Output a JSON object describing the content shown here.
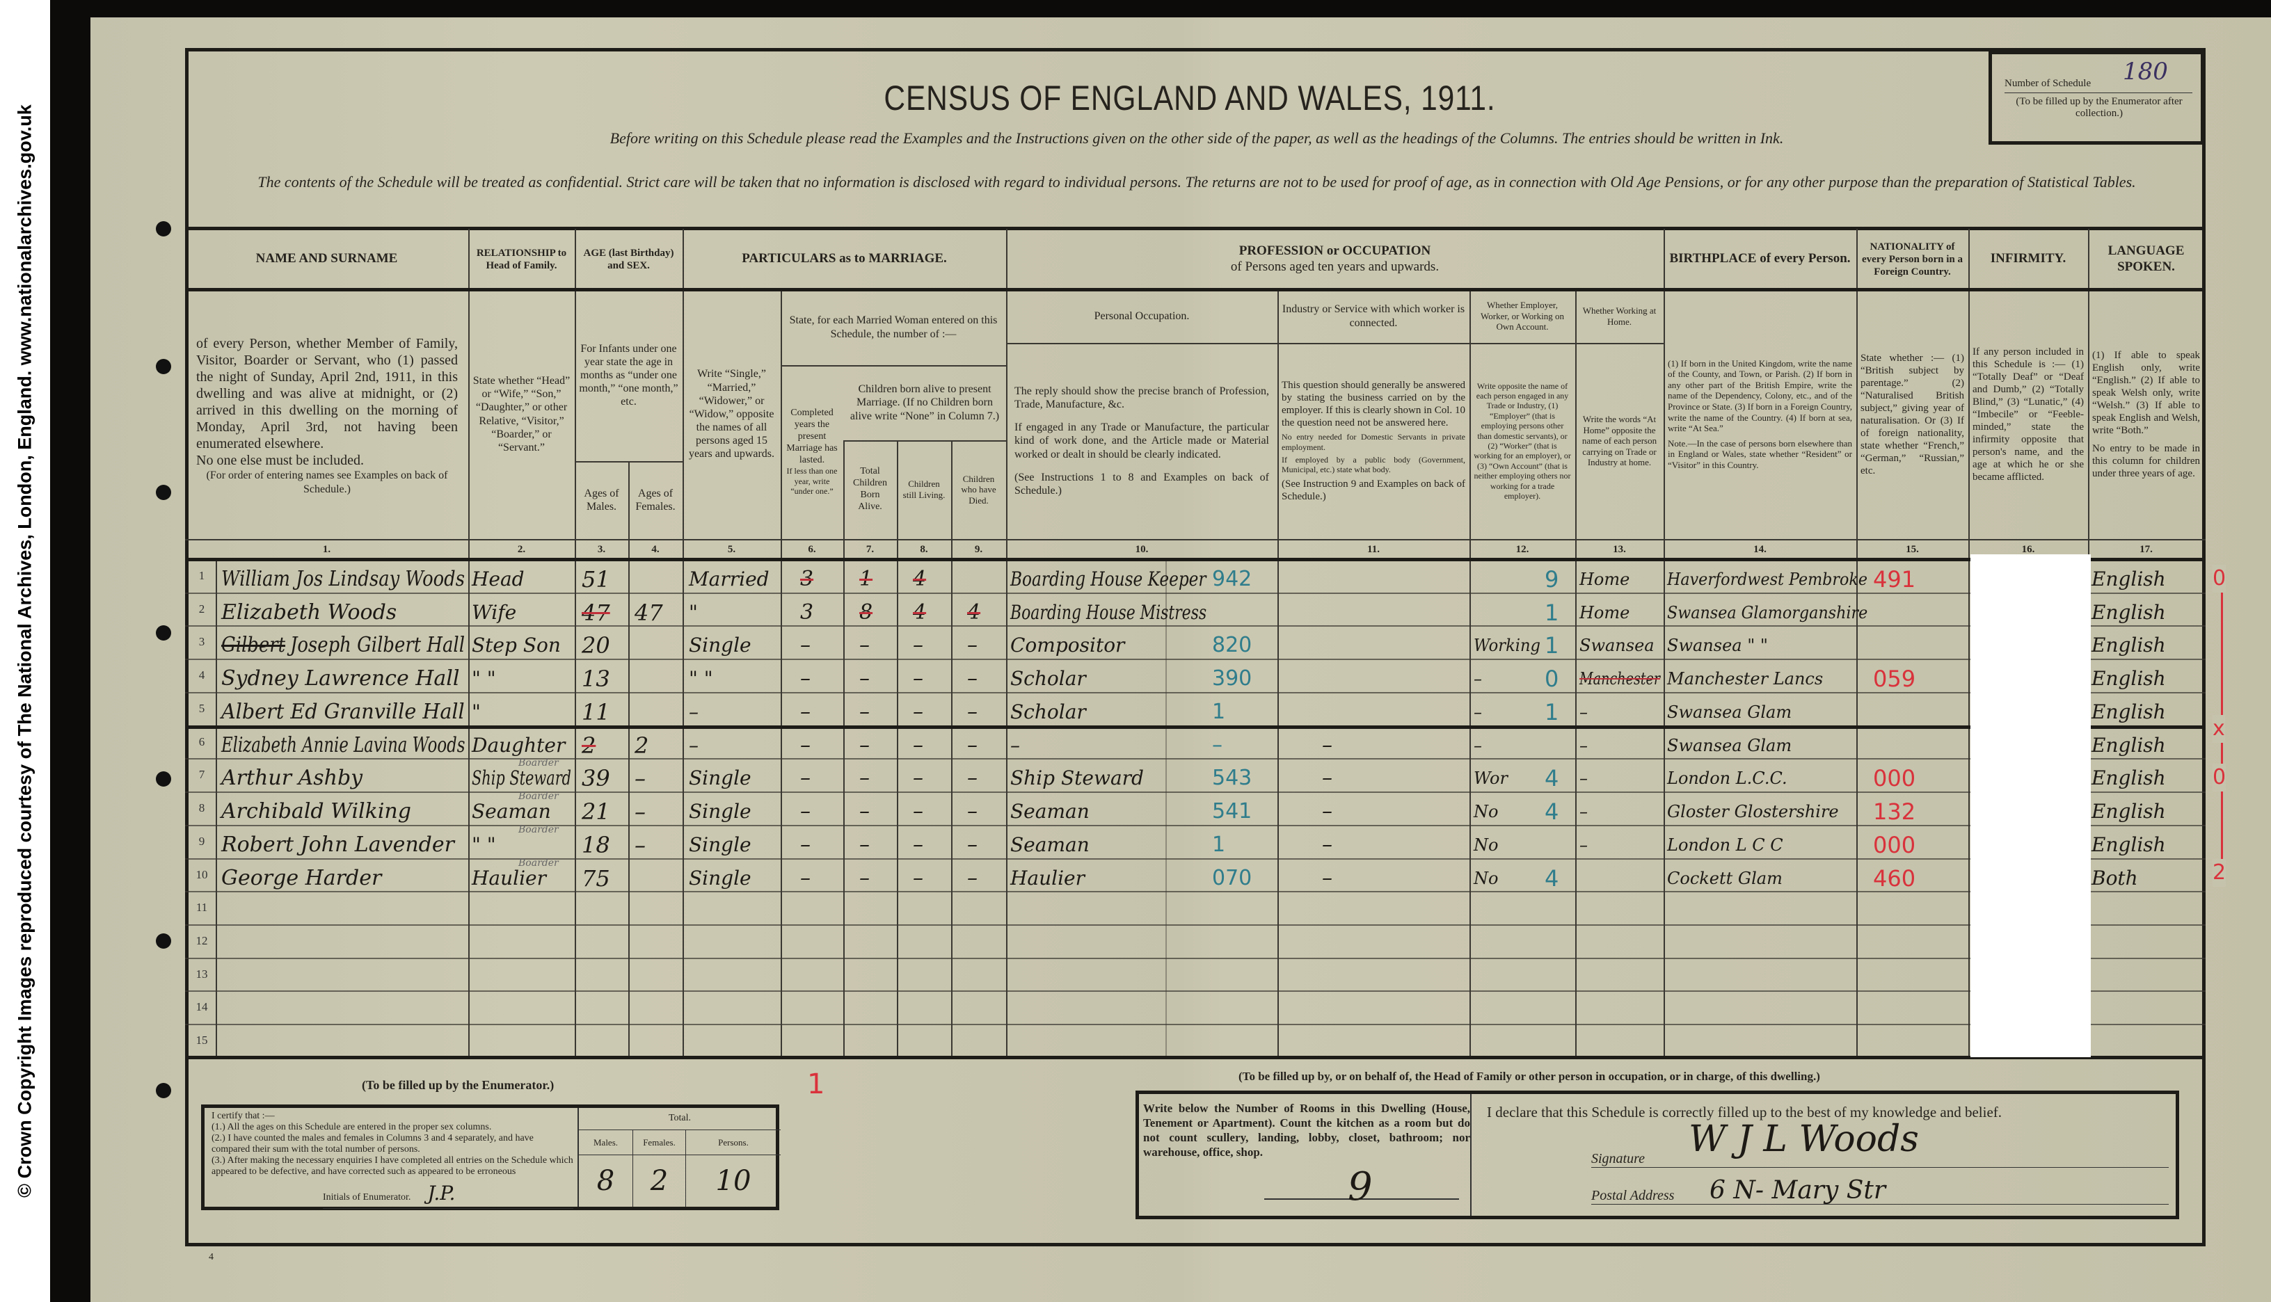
{
  "credit": "© Crown Copyright Images reproduced courtesy of The National Archives, London, England. www.nationalarchives.gov.uk",
  "title": "CENSUS OF ENGLAND AND WALES, 1911.",
  "instruction_line": "Before writing on this Schedule please read the Examples and the Instructions given on the other side of the paper, as well as the headings of the Columns.  The entries should be written in Ink.",
  "confidential_line": "The contents of the Schedule will be treated as confidential.  Strict care will be taken that no information is disclosed with regard to individual persons.  The returns are not to be used for proof of age, as in connection with Old Age Pensions, or for any other purpose than the preparation of Statistical Tables.",
  "schedule_box": {
    "label": "Number of Schedule",
    "value": "180",
    "note": "(To be filled up by the Enumerator after collection.)"
  },
  "headers": {
    "name": "NAME AND SURNAME",
    "relationship": "RELATIONSHIP to Head of Family.",
    "age": "AGE (last Birthday) and SEX.",
    "marriage": "PARTICULARS as to MARRIAGE.",
    "profession": "PROFESSION or OCCUPATION",
    "profession_sub": "of Persons aged ten years and upwards.",
    "birthplace": "BIRTHPLACE of every Person.",
    "nationality": "NATIONALITY of every Person born in a Foreign Country.",
    "infirmity": "INFIRMITY.",
    "language": "LANGUAGE SPOKEN."
  },
  "descriptions": {
    "name": "of every Person, whether Member of Family, Visitor, Boarder or Servant, who (1) passed the night of Sunday, April 2nd, 1911, in this dwelling and was alive at midnight, or (2) arrived in this dwelling on the morning of Monday, April 3rd, not having been enumerated elsewhere.",
    "name_note": "No one else must be included.",
    "name_order": "(For order of entering names see Examples on back of Schedule.)",
    "relationship": "State whether “Head” or “Wife,” “Son,” “Daughter,” or other Relative, “Visitor,” “Boarder,” or “Servant.”",
    "infants": "For Infants under one year state the age in months as “under one month,” “one month,” etc.",
    "males": "Ages of Males.",
    "females": "Ages of Females.",
    "marital": "Write “Single,” “Married,” “Widower,” or “Widow,” opposite the names of all persons aged 15 years and upwards.",
    "married_woman": "State, for each Married Woman entered on this Schedule, the number of :—",
    "completed_years": "Completed years the present Marriage has lasted.",
    "completed_years_note": "If less than one year, write “under one.”",
    "children_born": "Children born alive to present Marriage. (If no Children born alive write “None” in Column 7.)",
    "total_children": "Total Children Born Alive.",
    "children_living": "Children still Living.",
    "children_died": "Children who have Died.",
    "personal_occupation": "Personal Occupation.",
    "personal_occupation_desc1": "The reply should show the precise branch of Profession, Trade, Manufacture, &c.",
    "personal_occupation_desc2": "If engaged in any Trade or Manufacture, the particular kind of work done, and the Article made or Material worked or dealt in should be clearly indicated.",
    "personal_occupation_desc3": "(See Instructions 1 to 8 and Examples on back of Schedule.)",
    "industry": "Industry or Service with which worker is connected.",
    "industry_desc1": "This question should generally be answered by stating the business carried on by the employer. If this is clearly shown in Col. 10 the question need not be answered here.",
    "industry_desc2": "No entry needed for Domestic Servants in private employment.",
    "industry_desc3": "If employed by a public body (Government, Municipal, etc.) state what body.",
    "industry_desc4": "(See Instruction 9 and Examples on back of Schedule.)",
    "employer": "Whether Employer, Worker, or Working on Own Account.",
    "employer_desc": "Write opposite the name of each person engaged in any Trade or Industry, (1) “Employer” (that is employing persons other than domestic servants), or (2) “Worker” (that is working for an employer), or (3) “Own Account” (that is neither employing others nor working for a trade employer).",
    "home": "Whether Working at Home.",
    "home_desc": "Write the words “At Home” opposite the name of each person carrying on Trade or Industry at home.",
    "birthplace_desc": "(1) If born in the United Kingdom, write the name of the County, and Town, or Parish. (2) If born in any other part of the British Empire, write the name of the Dependency, Colony, etc., and of the Province or State. (3) If born in a Foreign Country, write the name of the Country. (4) If born at sea, write “At Sea.”",
    "birthplace_note": "Note.—In the case of persons born elsewhere than in England or Wales, state whether “Resident” or “Visitor” in this Country.",
    "nationality_desc": "State whether :— (1) “British subject by parentage.” (2) “Naturalised British subject,” giving year of naturalisation. Or (3) If of foreign nationality, state whether “French,” “German,” “Russian,” etc.",
    "infirmity_desc": "If any person included in this Schedule is :— (1) “Totally Deaf” or “Deaf and Dumb,” (2) “Totally Blind,” (3) “Lunatic,” (4) “Imbecile” or “Feeble-minded,” state the infirmity opposite that person's name, and the age at which he or she became afflicted.",
    "language_desc": "(1) If able to speak English only, write “English.” (2) If able to speak Welsh only, write “Welsh.” (3) If able to speak English and Welsh, write “Both.”",
    "language_note": "No entry to be made in this column for children under three years of age."
  },
  "column_numbers": [
    "1.",
    "2.",
    "3.",
    "4.",
    "5.",
    "6.",
    "7.",
    "8.",
    "9.",
    "10.",
    "11.",
    "12.",
    "13.",
    "14.",
    "15.",
    "16.",
    "17."
  ],
  "row_numbers": [
    "1",
    "2",
    "3",
    "4",
    "5",
    "6",
    "7",
    "8",
    "9",
    "10",
    "11",
    "12",
    "13",
    "14",
    "15"
  ],
  "rows": [
    {
      "name": "William Jos Lindsay Woods",
      "relationship": "Head",
      "age_m": "51",
      "age_f": "",
      "marital": "Married",
      "years": "3",
      "total": "1",
      "living": "4",
      "died": "",
      "occupation": "Boarding House Keeper",
      "occ_code": "942",
      "industry": "",
      "employer": "",
      "emp_code": "9",
      "home": "Home",
      "birthplace": "Haverfordwest Pembroke",
      "bp_code": "491",
      "language": "English",
      "struck": [
        "years",
        "total",
        "living"
      ]
    },
    {
      "name": "Elizabeth Woods",
      "relationship": "Wife",
      "age_m": "47",
      "age_f": "47",
      "marital": "\"",
      "years": "3",
      "total": "8",
      "living": "4",
      "died": "4",
      "occupation": "Boarding House Mistress",
      "occ_code": "",
      "industry": "",
      "employer": "",
      "emp_code": "1",
      "home": "Home",
      "birthplace": "Swansea Glamorganshire",
      "bp_code": "",
      "language": "English",
      "struck": [
        "age_m",
        "total",
        "living",
        "died"
      ]
    },
    {
      "name_struck": "Gilbert",
      "name": "Joseph Gilbert Hall",
      "relationship": "Step Son",
      "age_m": "20",
      "age_f": "",
      "marital": "Single",
      "years": "–",
      "total": "–",
      "living": "–",
      "died": "–",
      "occupation": "Compositor",
      "occ_code": "820",
      "industry": "",
      "employer": "Working",
      "emp_code": "1",
      "home": "Swansea",
      "birthplace": "Swansea \" \"",
      "bp_code": "",
      "language": "English",
      "struck": []
    },
    {
      "name": "Sydney Lawrence Hall",
      "relationship": "\" \"",
      "age_m": "13",
      "age_f": "",
      "marital": "\" \"",
      "years": "–",
      "total": "–",
      "living": "–",
      "died": "–",
      "occupation": "Scholar",
      "occ_code": "390",
      "industry": "",
      "employer": "–",
      "emp_code": "0",
      "home": "Manchester",
      "birthplace": "Manchester Lancs",
      "bp_code": "059",
      "language": "English",
      "struck": [
        "home"
      ]
    },
    {
      "name": "Albert Ed Granville Hall",
      "relationship": "\"",
      "age_m": "11",
      "age_f": "",
      "marital": "–",
      "years": "–",
      "total": "–",
      "living": "–",
      "died": "–",
      "occupation": "Scholar",
      "occ_code": "1",
      "industry": "",
      "employer": "–",
      "emp_code": "1",
      "home": "–",
      "birthplace": "Swansea Glam",
      "bp_code": "",
      "language": "English",
      "struck": []
    },
    {
      "name": "Elizabeth Annie Lavina Woods",
      "relationship": "Daughter",
      "age_m": "2",
      "age_f": "2",
      "marital": "–",
      "years": "–",
      "total": "–",
      "living": "–",
      "died": "–",
      "occupation": "–",
      "occ_code": "–",
      "industry": "–",
      "employer": "–",
      "emp_code": "",
      "home": "–",
      "birthplace": "Swansea Glam",
      "bp_code": "",
      "language": "English",
      "struck": [
        "age_m"
      ]
    },
    {
      "name": "Arthur Ashby",
      "relationship": "Ship Steward",
      "rel_note": "Boarder",
      "age_m": "39",
      "age_f": "–",
      "marital": "Single",
      "years": "–",
      "total": "–",
      "living": "–",
      "died": "–",
      "occupation": "Ship Steward",
      "occ_code": "543",
      "industry": "–",
      "employer": "Wor",
      "emp_code": "4",
      "home": "–",
      "birthplace": "London L.C.C.",
      "bp_code": "000",
      "language": "English",
      "struck": []
    },
    {
      "name": "Archibald Wilking",
      "relationship": "Seaman",
      "rel_note": "Boarder",
      "age_m": "21",
      "age_f": "–",
      "marital": "Single",
      "years": "–",
      "total": "–",
      "living": "–",
      "died": "–",
      "occupation": "Seaman",
      "occ_code": "541",
      "industry": "–",
      "employer": "No",
      "emp_code": "4",
      "home": "–",
      "birthplace": "Gloster Glostershire",
      "bp_code": "132",
      "language": "English",
      "struck": []
    },
    {
      "name": "Robert John Lavender",
      "relationship": "\" \"",
      "rel_note": "Boarder",
      "age_m": "18",
      "age_f": "–",
      "marital": "Single",
      "years": "–",
      "total": "–",
      "living": "–",
      "died": "–",
      "occupation": "Seaman",
      "occ_code": "1",
      "industry": "–",
      "employer": "No",
      "emp_code": "",
      "home": "–",
      "birthplace": "London L C C",
      "bp_code": "000",
      "language": "English",
      "struck": []
    },
    {
      "name": "George Harder",
      "relationship": "Haulier",
      "rel_note": "Boarder",
      "age_m": "75",
      "age_f": "",
      "marital": "Single",
      "years": "–",
      "total": "–",
      "living": "–",
      "died": "–",
      "occupation": "Haulier",
      "occ_code": "070",
      "industry": "–",
      "employer": "No",
      "emp_code": "4",
      "home": "",
      "birthplace": "Cockett Glam",
      "bp_code": "460",
      "language": "Both",
      "struck": []
    }
  ],
  "margin_marks": [
    "0",
    "x",
    "0",
    "2"
  ],
  "enumerator": {
    "heading": "(To be filled up by the Enumerator.)",
    "certify": "I certify that :—",
    "item1": "(1.) All the ages on this Schedule are entered in the proper sex columns.",
    "item2": "(2.) I have counted the males and females in Columns 3 and 4 separately, and have compared their sum with the total number of persons.",
    "item3": "(3.) After making the necessary enquiries I have completed all entries on the Schedule which appeared to be defective, and have corrected such as appeared to be erroneous",
    "initials_label": "Initials of Enumerator.",
    "initials": "J.P.",
    "total_label": "Total.",
    "males_label": "Males.",
    "females_label": "Females.",
    "persons_label": "Persons.",
    "males": "8",
    "females": "2",
    "persons": "10",
    "red_mark": "1"
  },
  "household": {
    "heading": "(To be filled up by, or on behalf of, the Head of Family or other person in occupation, or in charge, of this dwelling.)",
    "rooms_text": "Write below the Number of Rooms in this Dwelling (House, Tenement or Apartment). Count the kitchen as a room but do not count scullery, landing, lobby, closet, bathroom; nor warehouse, office, shop.",
    "rooms": "9",
    "declaration": "I declare that this Schedule is correctly filled up to the best of my knowledge and belief.",
    "signature_label": "Signature",
    "signature": "W J L Woods",
    "address_label": "Postal Address",
    "address": "6 N- Mary Str"
  },
  "page_number": "4",
  "colors": {
    "paper": "#c8c5ae",
    "ink": "#1d1a16",
    "red_pencil": "#d9323c",
    "blue_pencil": "#2f7d8c"
  }
}
